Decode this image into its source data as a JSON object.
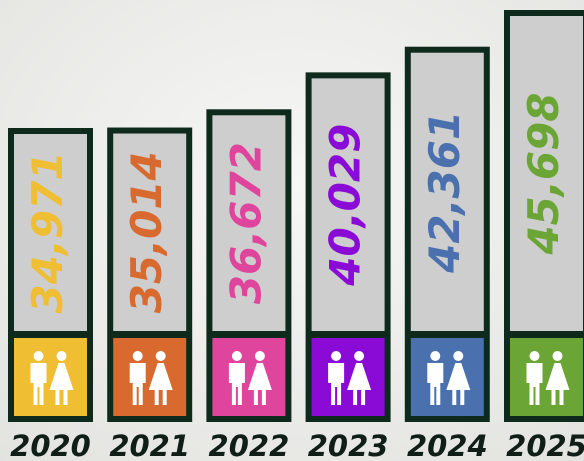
{
  "chart_data": {
    "type": "bar",
    "categories": [
      "2020",
      "2021",
      "2022",
      "2023",
      "2024",
      "2025"
    ],
    "values": [
      34971,
      35014,
      36672,
      40029,
      42361,
      45698
    ],
    "value_labels": [
      "34,971",
      "35,014",
      "36,672",
      "40,029",
      "42,361",
      "45,698"
    ],
    "colors": [
      "#efbe33",
      "#d86a30",
      "#df459c",
      "#8b0bd6",
      "#4a70ad",
      "#6ba536"
    ]
  }
}
